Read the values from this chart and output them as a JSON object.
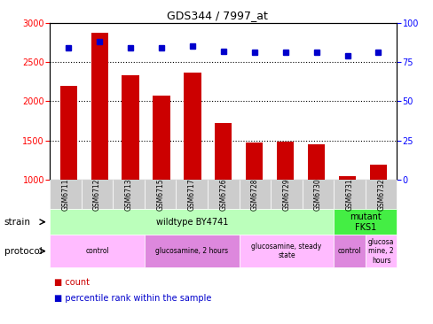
{
  "title": "GDS344 / 7997_at",
  "samples": [
    "GSM6711",
    "GSM6712",
    "GSM6713",
    "GSM6715",
    "GSM6717",
    "GSM6726",
    "GSM6728",
    "GSM6729",
    "GSM6730",
    "GSM6731",
    "GSM6732"
  ],
  "counts": [
    2200,
    2870,
    2330,
    2070,
    2360,
    1720,
    1480,
    1490,
    1450,
    1050,
    1190
  ],
  "percentiles": [
    84,
    88,
    84,
    84,
    85,
    82,
    81,
    81,
    81,
    79,
    81
  ],
  "bar_color": "#cc0000",
  "dot_color": "#0000cc",
  "ylim_left": [
    1000,
    3000
  ],
  "ylim_right": [
    0,
    100
  ],
  "yticks_left": [
    1000,
    1500,
    2000,
    2500,
    3000
  ],
  "yticks_right": [
    0,
    25,
    50,
    75,
    100
  ],
  "strain_labels": [
    {
      "text": "wildtype BY4741",
      "start": 0,
      "end": 9,
      "color": "#bbffbb"
    },
    {
      "text": "mutant\nFKS1",
      "start": 9,
      "end": 11,
      "color": "#44ee44"
    }
  ],
  "protocol_labels": [
    {
      "text": "control",
      "start": 0,
      "end": 3,
      "color": "#ffbbff"
    },
    {
      "text": "glucosamine, 2 hours",
      "start": 3,
      "end": 6,
      "color": "#dd88dd"
    },
    {
      "text": "glucosamine, steady\nstate",
      "start": 6,
      "end": 9,
      "color": "#ffbbff"
    },
    {
      "text": "control",
      "start": 9,
      "end": 10,
      "color": "#dd88dd"
    },
    {
      "text": "glucosa\nmine, 2\nhours",
      "start": 10,
      "end": 11,
      "color": "#ffbbff"
    }
  ],
  "dotted_lines": [
    1500,
    2000,
    2500
  ],
  "background_color": "#ffffff"
}
